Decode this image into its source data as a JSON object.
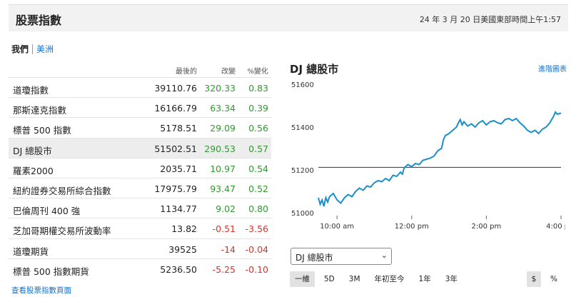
{
  "header": {
    "title": "股票指數",
    "timestamp": "24 年 3 月 20 日美國東部時間上午1:57"
  },
  "regions": {
    "current": "我們",
    "other": "美洲"
  },
  "table": {
    "headers": {
      "last": "最後的",
      "change": "改變",
      "pct": "%變化"
    },
    "rows": [
      {
        "name": "道瓊指數",
        "last": "39110.76",
        "change": "320.33",
        "pct": "0.83",
        "dir": "pos"
      },
      {
        "name": "那斯達克指數",
        "last": "16166.79",
        "change": "63.34",
        "pct": "0.39",
        "dir": "pos"
      },
      {
        "name": "標普 500 指數",
        "last": "5178.51",
        "change": "29.09",
        "pct": "0.56",
        "dir": "pos"
      },
      {
        "name": "DJ 總股市",
        "last": "51502.51",
        "change": "290.53",
        "pct": "0.57",
        "dir": "pos",
        "selected": true
      },
      {
        "name": "羅素2000",
        "last": "2035.71",
        "change": "10.97",
        "pct": "0.54",
        "dir": "pos"
      },
      {
        "name": "紐約證券交易所綜合指數",
        "last": "17975.79",
        "change": "93.47",
        "pct": "0.52",
        "dir": "pos"
      },
      {
        "name": "巴倫周刊 400 強",
        "last": "1134.77",
        "change": "9.02",
        "pct": "0.80",
        "dir": "pos"
      },
      {
        "name": "芝加哥期權交易所波動率",
        "last": "13.82",
        "change": "-0.51",
        "pct": "-3.56",
        "dir": "neg"
      },
      {
        "name": "道瓊期貨",
        "last": "39525",
        "change": "-14",
        "pct": "-0.04",
        "dir": "neg"
      },
      {
        "name": "標普 500 指數期貨",
        "last": "5236.50",
        "change": "-5.25",
        "pct": "-0.10",
        "dir": "neg"
      }
    ],
    "more_link": "查看股票指數頁面"
  },
  "chart": {
    "title": "DJ 總股市",
    "advanced_link": "進階圖表",
    "select_value": "DJ 總股市",
    "ranges": [
      "一維",
      "5D",
      "3M",
      "年初至今",
      "1年",
      "3年"
    ],
    "active_range": "一維",
    "currency_buttons": [
      "$",
      "%"
    ],
    "active_currency": "$"
  },
  "colors": {
    "line": "#1a8fc9",
    "link": "#1a6fc4",
    "positive": "#2e9b2e",
    "negative": "#d9342b"
  },
  "chart_data": {
    "type": "line",
    "y_ticks": [
      "51600",
      "51400",
      "51200",
      "51000"
    ],
    "x_ticks": [
      "10:00 am",
      "12:00 pm",
      "2:00 pm",
      "4:00 pm"
    ],
    "ylim": [
      51000,
      51600
    ],
    "xlim": [
      9.5,
      16.0
    ],
    "x_tick_values": [
      10,
      12,
      14,
      16
    ],
    "y_tick_values": [
      51600,
      51400,
      51200,
      51000
    ],
    "reference_line": 51212,
    "series": [
      {
        "values": [
          [
            9.5,
            51070
          ],
          [
            9.55,
            51040
          ],
          [
            9.6,
            51060
          ],
          [
            9.65,
            51030
          ],
          [
            9.7,
            51070
          ],
          [
            9.75,
            51050
          ],
          [
            9.8,
            51075
          ],
          [
            9.9,
            51090
          ],
          [
            10.0,
            51060
          ],
          [
            10.1,
            51045
          ],
          [
            10.2,
            51070
          ],
          [
            10.3,
            51085
          ],
          [
            10.4,
            51075
          ],
          [
            10.5,
            51100
          ],
          [
            10.6,
            51115
          ],
          [
            10.7,
            51105
          ],
          [
            10.8,
            51125
          ],
          [
            10.9,
            51120
          ],
          [
            11.0,
            51140
          ],
          [
            11.1,
            51150
          ],
          [
            11.2,
            51145
          ],
          [
            11.3,
            51160
          ],
          [
            11.4,
            51150
          ],
          [
            11.5,
            51175
          ],
          [
            11.6,
            51170
          ],
          [
            11.7,
            51190
          ],
          [
            11.75,
            51180
          ],
          [
            11.8,
            51210
          ],
          [
            11.9,
            51225
          ],
          [
            12.0,
            51215
          ],
          [
            12.1,
            51230
          ],
          [
            12.2,
            51225
          ],
          [
            12.3,
            51245
          ],
          [
            12.4,
            51250
          ],
          [
            12.5,
            51255
          ],
          [
            12.6,
            51265
          ],
          [
            12.7,
            51290
          ],
          [
            12.8,
            51300
          ],
          [
            12.85,
            51340
          ],
          [
            12.9,
            51360
          ],
          [
            13.0,
            51370
          ],
          [
            13.1,
            51385
          ],
          [
            13.2,
            51400
          ],
          [
            13.25,
            51420
          ],
          [
            13.3,
            51435
          ],
          [
            13.35,
            51410
          ],
          [
            13.4,
            51425
          ],
          [
            13.5,
            51405
          ],
          [
            13.6,
            51415
          ],
          [
            13.7,
            51400
          ],
          [
            13.8,
            51420
          ],
          [
            13.9,
            51430
          ],
          [
            14.0,
            51410
          ],
          [
            14.1,
            51425
          ],
          [
            14.2,
            51430
          ],
          [
            14.3,
            51420
          ],
          [
            14.4,
            51415
          ],
          [
            14.5,
            51435
          ],
          [
            14.6,
            51440
          ],
          [
            14.7,
            51430
          ],
          [
            14.8,
            51440
          ],
          [
            14.9,
            51420
          ],
          [
            15.0,
            51405
          ],
          [
            15.1,
            51385
          ],
          [
            15.2,
            51375
          ],
          [
            15.3,
            51385
          ],
          [
            15.4,
            51370
          ],
          [
            15.5,
            51390
          ],
          [
            15.6,
            51400
          ],
          [
            15.7,
            51420
          ],
          [
            15.8,
            51450
          ],
          [
            15.85,
            51470
          ],
          [
            15.9,
            51460
          ],
          [
            16.0,
            51465
          ]
        ]
      }
    ]
  }
}
